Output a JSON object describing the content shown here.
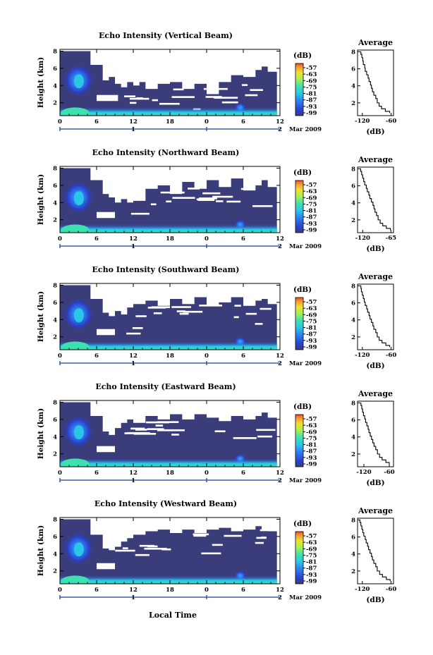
{
  "figure": {
    "xlabel": "Local Time",
    "colors": {
      "background": "#ffffff",
      "ink": "#000000",
      "date_axis": "#1f3aa8",
      "missing": "#ffffff"
    },
    "colormap": [
      "#3a3d7a",
      "#2b3fc8",
      "#2f7ef0",
      "#29c6e8",
      "#3fe0b0",
      "#a8f050",
      "#f0e030",
      "#f4a030",
      "#ee4a2a"
    ]
  },
  "chart_data": [
    {
      "type": "heatmap",
      "beam": "Vertical",
      "title": "Echo Intensity (Vertical Beam)",
      "ylabel": "Height (km)",
      "x_ticks": [
        "0",
        "6",
        "12",
        "18",
        "0",
        "6",
        "12"
      ],
      "x_range_hours": [
        0,
        36
      ],
      "date_ticks": [
        "1",
        "2"
      ],
      "date_label": "Mar 2009",
      "y_ticks": [
        "2",
        "4",
        "6",
        "8"
      ],
      "ylim": [
        0.5,
        8.2
      ],
      "colorbar": {
        "label": "(dB)",
        "ticks": [
          "-57",
          "-63",
          "-69",
          "-75",
          "-81",
          "-87",
          "-93",
          "-99"
        ],
        "range": [
          -99,
          -57
        ]
      },
      "data_end_hour": 35.5,
      "valid_top": [
        [
          0,
          8.0
        ],
        [
          4,
          8.0
        ],
        [
          5,
          6.4
        ],
        [
          7,
          4.6
        ],
        [
          8,
          5.0
        ],
        [
          9,
          4.2
        ],
        [
          10,
          3.8
        ],
        [
          11,
          4.4
        ],
        [
          12,
          4.0
        ],
        [
          13,
          4.4
        ],
        [
          14,
          3.6
        ],
        [
          16,
          4.2
        ],
        [
          18,
          4.4
        ],
        [
          20,
          3.6
        ],
        [
          22,
          4.2
        ],
        [
          24,
          3.0
        ],
        [
          26,
          4.4
        ],
        [
          28,
          5.2
        ],
        [
          30,
          5.0
        ],
        [
          32,
          5.8
        ],
        [
          33,
          6.2
        ],
        [
          34,
          5.6
        ],
        [
          35.5,
          6.0
        ]
      ],
      "lower_gap": [
        6,
        9.5,
        2.2,
        2.9
      ],
      "profile": {
        "title": "Average",
        "xlabel": "(dB)",
        "x_ticks": [
          "-120",
          "-60"
        ],
        "xlim": [
          -130,
          -55
        ],
        "y_ticks": [
          "2",
          "4",
          "6",
          "8"
        ],
        "ylim": [
          0.5,
          8.2
        ],
        "points": [
          [
            -63,
            0.8
          ],
          [
            -72,
            1.0
          ],
          [
            -80,
            1.3
          ],
          [
            -85,
            1.6
          ],
          [
            -89,
            2.0
          ],
          [
            -92,
            2.5
          ],
          [
            -96,
            2.9
          ],
          [
            -99,
            3.3
          ],
          [
            -101,
            3.7
          ],
          [
            -103,
            4.1
          ],
          [
            -106,
            4.5
          ],
          [
            -108,
            4.9
          ],
          [
            -111,
            5.3
          ],
          [
            -114,
            5.7
          ],
          [
            -115,
            6.1
          ],
          [
            -118,
            6.5
          ],
          [
            -119,
            6.9
          ],
          [
            -121,
            7.3
          ],
          [
            -123,
            7.7
          ],
          [
            -124,
            8.0
          ]
        ]
      }
    },
    {
      "type": "heatmap",
      "beam": "Northward",
      "title": "Echo Intensity (Northward Beam)",
      "ylabel": "Height (km)",
      "x_ticks": [
        "0",
        "6",
        "12",
        "18",
        "0",
        "6",
        "12"
      ],
      "x_range_hours": [
        0,
        36
      ],
      "date_ticks": [
        "1",
        "2"
      ],
      "date_label": "Mar 2009",
      "y_ticks": [
        "2",
        "4",
        "6",
        "8"
      ],
      "ylim": [
        0.5,
        8.2
      ],
      "colorbar": {
        "label": "(dB)",
        "ticks": [
          "-57",
          "-63",
          "-69",
          "-75",
          "-81",
          "-87",
          "-93",
          "-99"
        ],
        "range": [
          -99,
          -57
        ]
      },
      "data_end_hour": 35.5,
      "valid_top": [
        [
          0,
          8.0
        ],
        [
          4,
          8.0
        ],
        [
          5,
          6.6
        ],
        [
          7,
          5.0
        ],
        [
          8,
          4.6
        ],
        [
          9,
          4.0
        ],
        [
          10,
          4.4
        ],
        [
          11,
          4.0
        ],
        [
          12,
          4.2
        ],
        [
          14,
          5.6
        ],
        [
          16,
          6.0
        ],
        [
          18,
          5.0
        ],
        [
          20,
          6.4
        ],
        [
          22,
          5.6
        ],
        [
          24,
          6.6
        ],
        [
          26,
          5.8
        ],
        [
          28,
          6.8
        ],
        [
          30,
          5.4
        ],
        [
          32,
          6.0
        ],
        [
          33,
          6.6
        ],
        [
          34,
          5.8
        ],
        [
          35.5,
          6.0
        ]
      ],
      "lower_gap": [
        6,
        9.0,
        2.2,
        2.9
      ],
      "profile": {
        "title": "Average",
        "xlabel": "(dB)",
        "x_ticks": [
          "-120",
          "-65"
        ],
        "xlim": [
          -130,
          -60
        ],
        "y_ticks": [
          "2",
          "4",
          "6",
          "8"
        ],
        "ylim": [
          0.5,
          8.2
        ],
        "points": [
          [
            -66,
            0.8
          ],
          [
            -74,
            1.0
          ],
          [
            -81,
            1.3
          ],
          [
            -86,
            1.6
          ],
          [
            -90,
            2.0
          ],
          [
            -93,
            2.5
          ],
          [
            -96,
            2.9
          ],
          [
            -98,
            3.3
          ],
          [
            -100,
            3.7
          ],
          [
            -103,
            4.1
          ],
          [
            -106,
            4.5
          ],
          [
            -108,
            4.9
          ],
          [
            -111,
            5.3
          ],
          [
            -113,
            5.7
          ],
          [
            -116,
            6.1
          ],
          [
            -118,
            6.5
          ],
          [
            -120,
            6.9
          ],
          [
            -122,
            7.3
          ],
          [
            -124,
            7.7
          ],
          [
            -125,
            8.0
          ]
        ]
      }
    },
    {
      "type": "heatmap",
      "beam": "Southward",
      "title": "Echo Intensity (Southward Beam)",
      "ylabel": "Height (km)",
      "x_ticks": [
        "0",
        "6",
        "12",
        "18",
        "0",
        "6",
        "12"
      ],
      "x_range_hours": [
        0,
        36
      ],
      "date_ticks": [
        "1",
        "2"
      ],
      "date_label": "Mar 2009",
      "y_ticks": [
        "2",
        "4",
        "6",
        "8"
      ],
      "ylim": [
        0.5,
        8.2
      ],
      "colorbar": {
        "label": "(dB)",
        "ticks": [
          "-57",
          "-63",
          "-69",
          "-75",
          "-81",
          "-87",
          "-93",
          "-99"
        ],
        "range": [
          -99,
          -57
        ]
      },
      "data_end_hour": 35.5,
      "valid_top": [
        [
          0,
          8.0
        ],
        [
          4,
          8.0
        ],
        [
          5,
          6.4
        ],
        [
          7,
          4.8
        ],
        [
          8,
          4.4
        ],
        [
          9,
          5.0
        ],
        [
          10,
          4.6
        ],
        [
          11,
          5.4
        ],
        [
          12,
          5.8
        ],
        [
          14,
          6.2
        ],
        [
          16,
          5.6
        ],
        [
          18,
          6.4
        ],
        [
          20,
          5.8
        ],
        [
          22,
          6.6
        ],
        [
          24,
          5.6
        ],
        [
          26,
          6.0
        ],
        [
          28,
          6.6
        ],
        [
          30,
          5.6
        ],
        [
          32,
          6.2
        ],
        [
          33,
          6.4
        ],
        [
          34,
          5.8
        ],
        [
          35.5,
          6.0
        ]
      ],
      "lower_gap": [
        6,
        9.0,
        2.2,
        2.9
      ],
      "profile": {
        "title": "Average",
        "xlabel": "(dB)",
        "x_ticks": [
          "-120",
          "-60"
        ],
        "xlim": [
          -130,
          -55
        ],
        "y_ticks": [
          "2",
          "4",
          "6",
          "8"
        ],
        "ylim": [
          0.5,
          8.2
        ],
        "points": [
          [
            -63,
            0.8
          ],
          [
            -71,
            1.0
          ],
          [
            -79,
            1.3
          ],
          [
            -85,
            1.6
          ],
          [
            -89,
            2.0
          ],
          [
            -92,
            2.5
          ],
          [
            -96,
            2.9
          ],
          [
            -98,
            3.3
          ],
          [
            -101,
            3.7
          ],
          [
            -104,
            4.1
          ],
          [
            -106,
            4.5
          ],
          [
            -109,
            4.9
          ],
          [
            -111,
            5.3
          ],
          [
            -114,
            5.7
          ],
          [
            -116,
            6.1
          ],
          [
            -118,
            6.5
          ],
          [
            -120,
            6.9
          ],
          [
            -122,
            7.3
          ],
          [
            -123,
            7.7
          ],
          [
            -125,
            8.0
          ]
        ]
      }
    },
    {
      "type": "heatmap",
      "beam": "Eastward",
      "title": "Echo Intensity (Eastward Beam)",
      "ylabel": "Height (km)",
      "x_ticks": [
        "0",
        "6",
        "12",
        "18",
        "0",
        "6",
        "12"
      ],
      "x_range_hours": [
        0,
        36
      ],
      "date_ticks": [
        "1",
        "2"
      ],
      "date_label": "Mar 2009",
      "y_ticks": [
        "2",
        "4",
        "6",
        "8"
      ],
      "ylim": [
        0.5,
        8.2
      ],
      "colorbar": {
        "label": "(dB)",
        "ticks": [
          "-57",
          "-63",
          "-69",
          "-75",
          "-81",
          "-87",
          "-93",
          "-99"
        ],
        "range": [
          -99,
          -57
        ]
      },
      "data_end_hour": 35.5,
      "valid_top": [
        [
          0,
          8.0
        ],
        [
          4,
          8.0
        ],
        [
          5,
          6.4
        ],
        [
          7,
          4.6
        ],
        [
          8,
          4.2
        ],
        [
          9,
          5.0
        ],
        [
          10,
          5.6
        ],
        [
          11,
          6.0
        ],
        [
          12,
          5.6
        ],
        [
          14,
          6.4
        ],
        [
          16,
          6.0
        ],
        [
          18,
          6.6
        ],
        [
          20,
          6.0
        ],
        [
          22,
          6.6
        ],
        [
          24,
          6.2
        ],
        [
          26,
          5.8
        ],
        [
          28,
          6.4
        ],
        [
          30,
          6.0
        ],
        [
          32,
          6.4
        ],
        [
          33,
          6.8
        ],
        [
          34,
          6.2
        ],
        [
          35.5,
          6.2
        ]
      ],
      "lower_gap": [
        6,
        9.0,
        2.2,
        2.9
      ],
      "profile": {
        "title": "Average",
        "xlabel": "(dB)",
        "x_ticks": [
          "-120",
          "-60"
        ],
        "xlim": [
          -135,
          -50
        ],
        "y_ticks": [
          "2",
          "4",
          "6",
          "8"
        ],
        "ylim": [
          0.5,
          8.2
        ],
        "points": [
          [
            -60,
            0.8
          ],
          [
            -68,
            1.0
          ],
          [
            -77,
            1.3
          ],
          [
            -83,
            1.6
          ],
          [
            -88,
            2.0
          ],
          [
            -92,
            2.5
          ],
          [
            -96,
            2.9
          ],
          [
            -99,
            3.3
          ],
          [
            -102,
            3.7
          ],
          [
            -105,
            4.1
          ],
          [
            -108,
            4.5
          ],
          [
            -110,
            4.9
          ],
          [
            -113,
            5.3
          ],
          [
            -116,
            5.7
          ],
          [
            -118,
            6.1
          ],
          [
            -121,
            6.5
          ],
          [
            -123,
            6.9
          ],
          [
            -125,
            7.3
          ],
          [
            -127,
            7.7
          ],
          [
            -128,
            8.0
          ]
        ]
      }
    },
    {
      "type": "heatmap",
      "beam": "Westward",
      "title": "Echo Intensity (Westward Beam)",
      "ylabel": "Height (km)",
      "x_ticks": [
        "0",
        "6",
        "12",
        "18",
        "0",
        "6",
        "12"
      ],
      "x_range_hours": [
        0,
        36
      ],
      "date_ticks": [
        "1",
        "2"
      ],
      "date_label": "Mar 2009",
      "y_ticks": [
        "2",
        "4",
        "6",
        "8"
      ],
      "ylim": [
        0.5,
        8.2
      ],
      "colorbar": {
        "label": "(dB)",
        "ticks": [
          "-57",
          "-63",
          "-69",
          "-75",
          "-81",
          "-87",
          "-93",
          "-99"
        ],
        "range": [
          -99,
          -57
        ]
      },
      "data_end_hour": 35.5,
      "valid_top": [
        [
          0,
          8.0
        ],
        [
          4,
          8.0
        ],
        [
          5,
          6.2
        ],
        [
          7,
          4.6
        ],
        [
          8,
          4.4
        ],
        [
          9,
          4.8
        ],
        [
          10,
          5.4
        ],
        [
          11,
          5.8
        ],
        [
          12,
          6.2
        ],
        [
          14,
          6.6
        ],
        [
          16,
          6.8
        ],
        [
          18,
          6.4
        ],
        [
          20,
          6.8
        ],
        [
          22,
          6.4
        ],
        [
          24,
          6.8
        ],
        [
          26,
          7.0
        ],
        [
          28,
          6.6
        ],
        [
          30,
          6.8
        ],
        [
          32,
          7.2
        ],
        [
          33,
          6.8
        ],
        [
          34,
          6.6
        ],
        [
          35.5,
          6.6
        ]
      ],
      "lower_gap": [
        6,
        9.0,
        2.2,
        2.9
      ],
      "profile": {
        "title": "Average",
        "xlabel": "(dB)",
        "x_ticks": [
          "-120",
          "-60"
        ],
        "xlim": [
          -130,
          -55
        ],
        "y_ticks": [
          "2",
          "4",
          "6",
          "8"
        ],
        "ylim": [
          0.5,
          8.2
        ],
        "points": [
          [
            -62,
            0.8
          ],
          [
            -70,
            1.0
          ],
          [
            -78,
            1.3
          ],
          [
            -84,
            1.6
          ],
          [
            -89,
            2.0
          ],
          [
            -92,
            2.5
          ],
          [
            -96,
            2.9
          ],
          [
            -99,
            3.3
          ],
          [
            -101,
            3.7
          ],
          [
            -104,
            4.1
          ],
          [
            -107,
            4.5
          ],
          [
            -109,
            4.9
          ],
          [
            -112,
            5.3
          ],
          [
            -114,
            5.7
          ],
          [
            -117,
            6.1
          ],
          [
            -119,
            6.5
          ],
          [
            -121,
            6.9
          ],
          [
            -123,
            7.3
          ],
          [
            -125,
            7.7
          ],
          [
            -126,
            8.0
          ]
        ]
      }
    }
  ]
}
